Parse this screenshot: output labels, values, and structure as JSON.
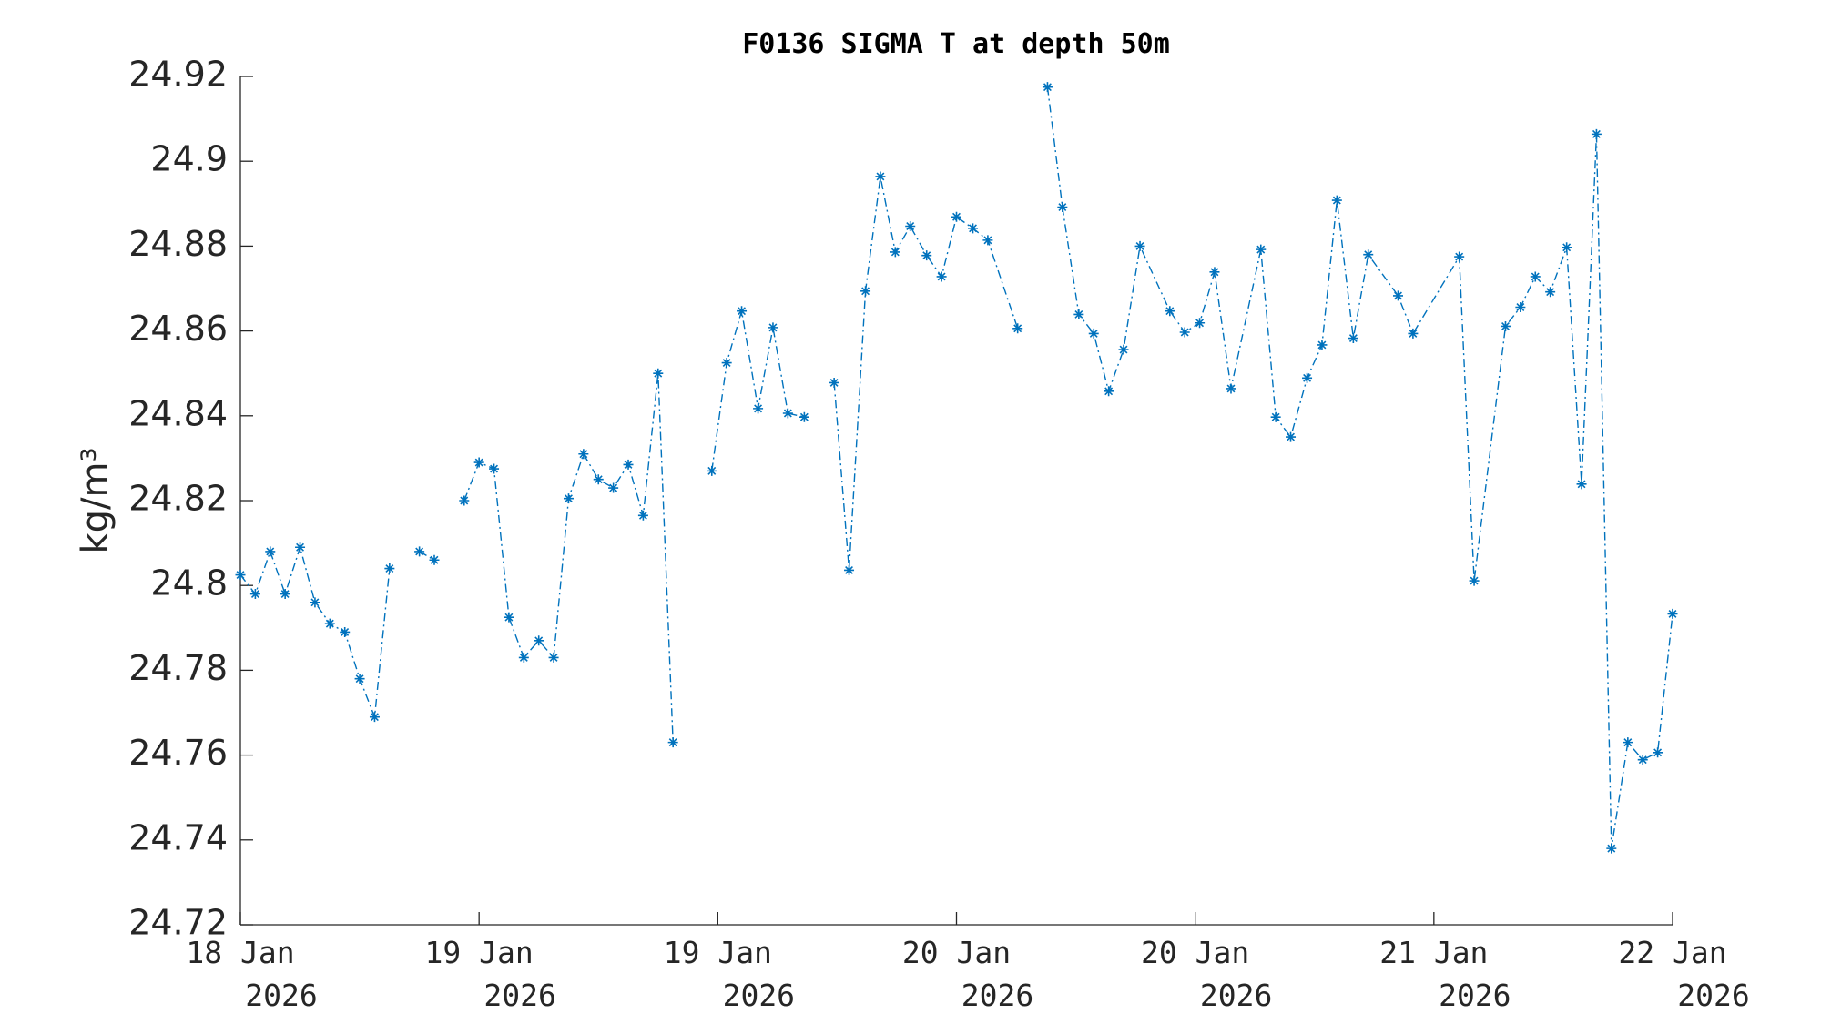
{
  "chart_data": {
    "type": "line",
    "title": "F0136 SIGMA T at depth 50m",
    "y_label": "kg/m³",
    "xlim": [
      0,
      96
    ],
    "xticks": [
      {
        "value": 0,
        "label": "18 Jan 2026"
      },
      {
        "value": 16,
        "label": "19 Jan 2026"
      },
      {
        "value": 32,
        "label": "19 Jan 2026"
      },
      {
        "value": 48,
        "label": "20 Jan 2026"
      },
      {
        "value": 64,
        "label": "20 Jan 2026"
      },
      {
        "value": 80,
        "label": "21 Jan 2026"
      },
      {
        "value": 96,
        "label": "22 Jan 2026"
      }
    ],
    "ylim": [
      24.72,
      24.92
    ],
    "yticks": [
      24.72,
      24.74,
      24.76,
      24.78,
      24.8,
      24.82,
      24.84,
      24.86,
      24.88,
      24.9,
      24.92
    ],
    "series": [
      {
        "name": "SIGMA T",
        "color": "#0072bd",
        "x": [
          0,
          1,
          2,
          3,
          4,
          5,
          6,
          7,
          8,
          9,
          10,
          11.1,
          12,
          13,
          14.1,
          15,
          16,
          17,
          18,
          19,
          20,
          21,
          22,
          23,
          24,
          25,
          26,
          27,
          28,
          29,
          30.6,
          31.6,
          32.6,
          33.6,
          34.7,
          35.7,
          36.7,
          37.8,
          38.8,
          39.8,
          40.8,
          41.9,
          42.9,
          43.9,
          44.9,
          46,
          47,
          48,
          49.1,
          50.1,
          52.1,
          53.1,
          54.1,
          55.1,
          56.2,
          57.2,
          58.2,
          59.2,
          60.3,
          62.3,
          63.3,
          64.3,
          65.3,
          66.4,
          68.4,
          69.4,
          70.4,
          71.5,
          72.5,
          73.5,
          74.6,
          75.6,
          77.6,
          78.6,
          81.7,
          82.7,
          84.8,
          85.8,
          86.8,
          87.8,
          88.9,
          89.9,
          90.9,
          91.9,
          93,
          94,
          95,
          96
        ],
        "values": [
          24.8025,
          24.798,
          24.808,
          24.798,
          24.809,
          24.796,
          24.791,
          24.789,
          24.778,
          24.769,
          24.804,
          null,
          24.808,
          24.806,
          null,
          24.82,
          24.829,
          24.8275,
          24.7925,
          24.783,
          24.787,
          24.783,
          24.8205,
          24.831,
          24.825,
          24.823,
          24.8285,
          24.8165,
          24.85,
          24.763,
          null,
          24.827,
          24.8525,
          24.8647,
          24.8417,
          24.8608,
          24.8406,
          24.8397,
          null,
          24.8478,
          24.8036,
          24.8694,
          24.8964,
          24.8786,
          24.8847,
          24.8778,
          24.8728,
          24.8869,
          24.8842,
          24.8814,
          24.8606,
          null,
          24.9175,
          24.8892,
          24.8639,
          24.8594,
          24.8458,
          24.8556,
          24.88,
          24.8647,
          24.8597,
          24.8619,
          24.8739,
          24.8464,
          24.8792,
          24.8397,
          24.835,
          24.8489,
          24.8567,
          24.8908,
          24.8583,
          24.878,
          24.8683,
          24.8594,
          24.8775,
          24.8011,
          24.8611,
          24.8656,
          24.8728,
          24.8692,
          24.8797,
          24.8239,
          24.9064,
          24.738,
          24.763,
          24.7589,
          24.7606,
          24.7933
        ]
      }
    ]
  }
}
